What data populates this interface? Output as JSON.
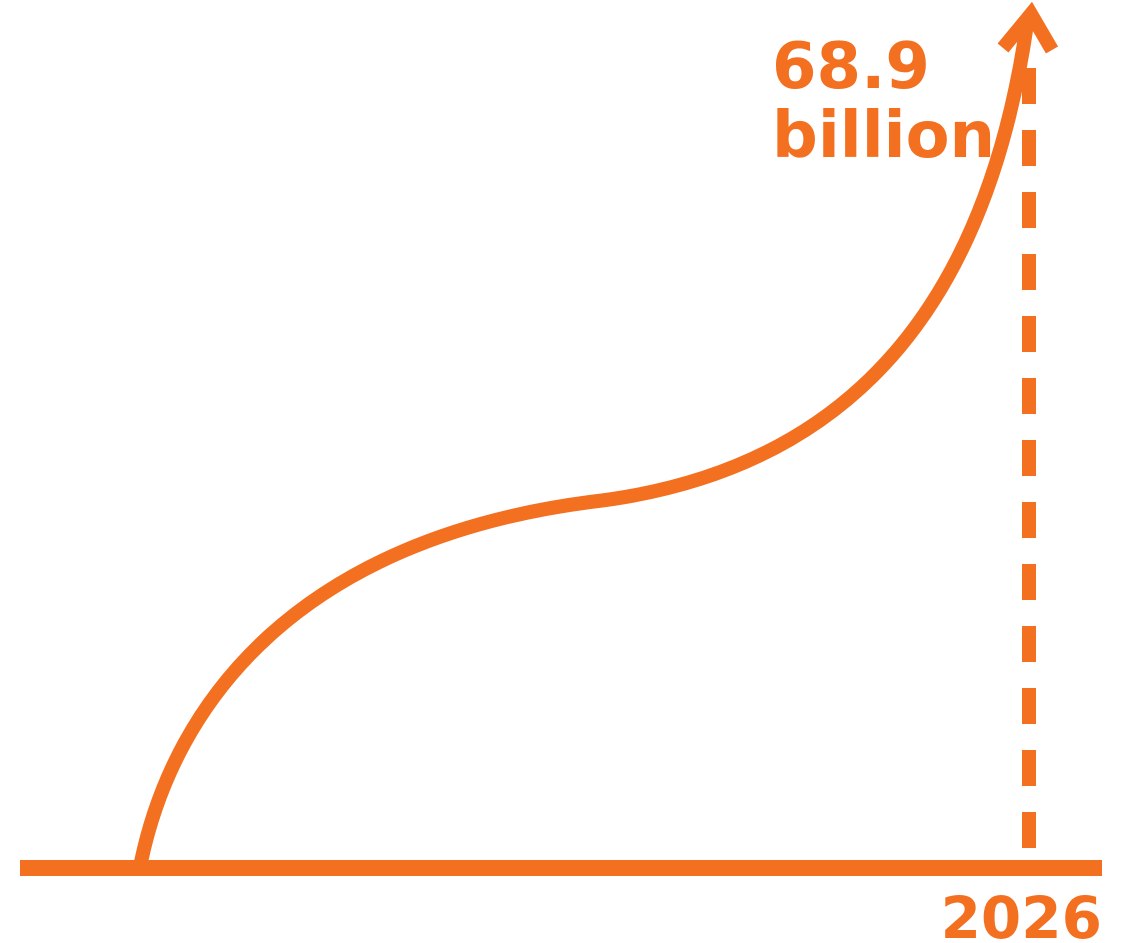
{
  "chart_data": {
    "type": "line",
    "title": "",
    "xlabel": "",
    "ylabel": "",
    "color": "#F37021",
    "end_marker": {
      "x_label": "2026",
      "value_line1": "68.9",
      "value_line2": "billion",
      "value": 68.9,
      "unit": "billion"
    },
    "grid": false,
    "legend": "none"
  }
}
